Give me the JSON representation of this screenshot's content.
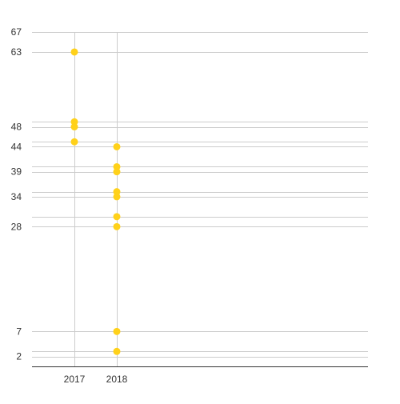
{
  "chart_data": {
    "type": "scatter",
    "title": "",
    "xlabel": "",
    "ylabel": "",
    "grid": true,
    "legend": "none",
    "x_categories": [
      "2017",
      "2018"
    ],
    "y_ticks": [
      67,
      63,
      48,
      44,
      39,
      34,
      28,
      7,
      2
    ],
    "y_gridlines": [
      67,
      63,
      49,
      48,
      45,
      44,
      40,
      39,
      35,
      34,
      30,
      28,
      7,
      3,
      2
    ],
    "ylim": [
      0,
      67
    ],
    "series": [
      {
        "points": [
          {
            "x": "2017",
            "y": 63
          },
          {
            "x": "2017",
            "y": 49
          },
          {
            "x": "2017",
            "y": 48
          },
          {
            "x": "2017",
            "y": 45
          },
          {
            "x": "2018",
            "y": 44
          },
          {
            "x": "2018",
            "y": 40
          },
          {
            "x": "2018",
            "y": 39
          },
          {
            "x": "2018",
            "y": 35
          },
          {
            "x": "2018",
            "y": 34
          },
          {
            "x": "2018",
            "y": 30
          },
          {
            "x": "2018",
            "y": 28
          },
          {
            "x": "2018",
            "y": 7
          },
          {
            "x": "2018",
            "y": 3
          }
        ]
      }
    ],
    "colors": {
      "point": "#FFD11A",
      "grid": "#CCCCCC",
      "axis": "#333333",
      "text": "#333333"
    }
  }
}
